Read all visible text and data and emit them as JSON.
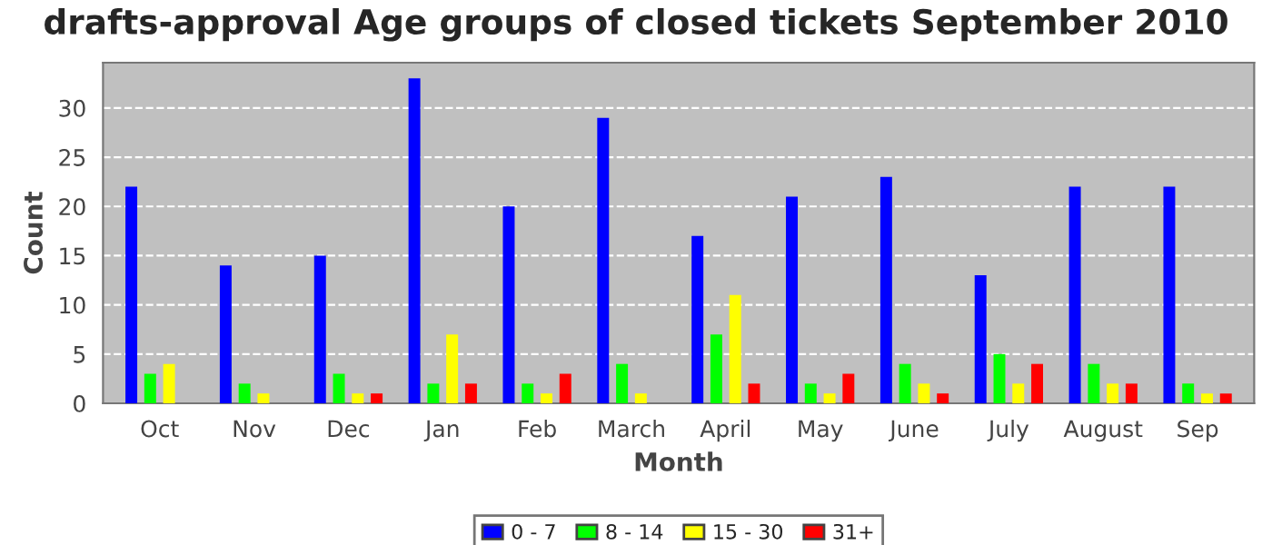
{
  "chart_data": {
    "type": "bar",
    "title": "drafts-approval Age groups of closed tickets September 2010",
    "xlabel": "Month",
    "ylabel": "Count",
    "categories": [
      "Oct",
      "Nov",
      "Dec",
      "Jan",
      "Feb",
      "March",
      "April",
      "May",
      "June",
      "July",
      "August",
      "Sep"
    ],
    "series": [
      {
        "name": "0 - 7",
        "color": "#0000ff",
        "values": [
          22,
          14,
          15,
          33,
          20,
          29,
          17,
          21,
          23,
          13,
          22,
          22
        ]
      },
      {
        "name": "8 - 14",
        "color": "#00ff00",
        "values": [
          3,
          2,
          3,
          2,
          2,
          4,
          7,
          2,
          4,
          5,
          4,
          2
        ]
      },
      {
        "name": "15 - 30",
        "color": "#ffff00",
        "values": [
          4,
          1,
          1,
          7,
          1,
          1,
          11,
          1,
          2,
          2,
          2,
          1
        ]
      },
      {
        "name": "31+",
        "color": "#ff0000",
        "values": [
          0,
          0,
          1,
          2,
          3,
          0,
          2,
          3,
          1,
          4,
          2,
          1
        ]
      }
    ],
    "ylim": [
      0,
      34.6
    ],
    "yticks": [
      0,
      5,
      10,
      15,
      20,
      25,
      30
    ],
    "grid": "y",
    "legend": "bottom"
  }
}
